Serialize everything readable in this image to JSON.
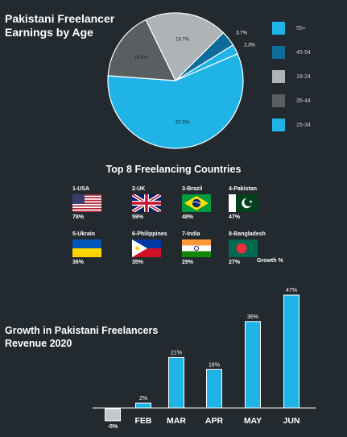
{
  "chart_data": [
    {
      "type": "pie",
      "title": "Pakistani Freelancer Earnings by Age",
      "slices": [
        {
          "label": "25-34",
          "value": 57.6,
          "color": "#1fb3e6"
        },
        {
          "label": "35-44",
          "value": 16.6,
          "color": "#5b5e61"
        },
        {
          "label": "18-24",
          "value": 19.7,
          "color": "#aeb3b6"
        },
        {
          "label": "45-54",
          "value": 3.7,
          "color": "#0e6c9c"
        },
        {
          "label": "55+",
          "value": 2.3,
          "color": "#1fb3e6"
        }
      ],
      "slice_labels": [
        "57.6%",
        "16.6%",
        "19.7%",
        "3.7%",
        "2.3%"
      ],
      "legend": [
        {
          "label": "55+",
          "color": "#1fb3e6"
        },
        {
          "label": "45-54",
          "color": "#0e6c9c"
        },
        {
          "label": "18-24",
          "color": "#aeb3b6"
        },
        {
          "label": "35-44",
          "color": "#5b5e61"
        },
        {
          "label": "25-34",
          "color": "#1fb3e6"
        }
      ],
      "legend_placement": "right"
    },
    {
      "type": "bar",
      "title": "Growth in Pakistani Freelancers Revenue 2020",
      "categories": [
        "",
        "FEB",
        "MAR",
        "APR",
        "MAY",
        "JUN"
      ],
      "values": [
        -5,
        2,
        21,
        16,
        36,
        47
      ],
      "value_labels": [
        "-5%",
        "2%",
        "21%",
        "16%",
        "36%",
        "47%"
      ],
      "bar_colors": [
        "#c4c8cb",
        "#1fb3e6",
        "#1fb3e6",
        "#1fb3e6",
        "#1fb3e6",
        "#1fb3e6"
      ],
      "grid": false
    }
  ],
  "countries": {
    "title": "Top 8 Freelancing Countries",
    "growth_label": "Growth %",
    "items": [
      {
        "name": "1-USA",
        "percent": "78%",
        "flag": "usa-flag-icon"
      },
      {
        "name": "2-UK",
        "percent": "59%",
        "flag": "uk-flag-icon"
      },
      {
        "name": "3-Brazil",
        "percent": "48%",
        "flag": "brazil-flag-icon"
      },
      {
        "name": "4-Pakistan",
        "percent": "47%",
        "flag": "pakistan-flag-icon"
      },
      {
        "name": "5-Ukrain",
        "percent": "36%",
        "flag": "ukraine-flag-icon"
      },
      {
        "name": "6-Philippines",
        "percent": "35%",
        "flag": "philippines-flag-icon"
      },
      {
        "name": "7-India",
        "percent": "29%",
        "flag": "india-flag-icon"
      },
      {
        "name": "8-Bangladesh",
        "percent": "27%",
        "flag": "bangladesh-flag-icon"
      }
    ]
  },
  "colors": {
    "background": "#22292f",
    "accent": "#1fb3e6"
  }
}
